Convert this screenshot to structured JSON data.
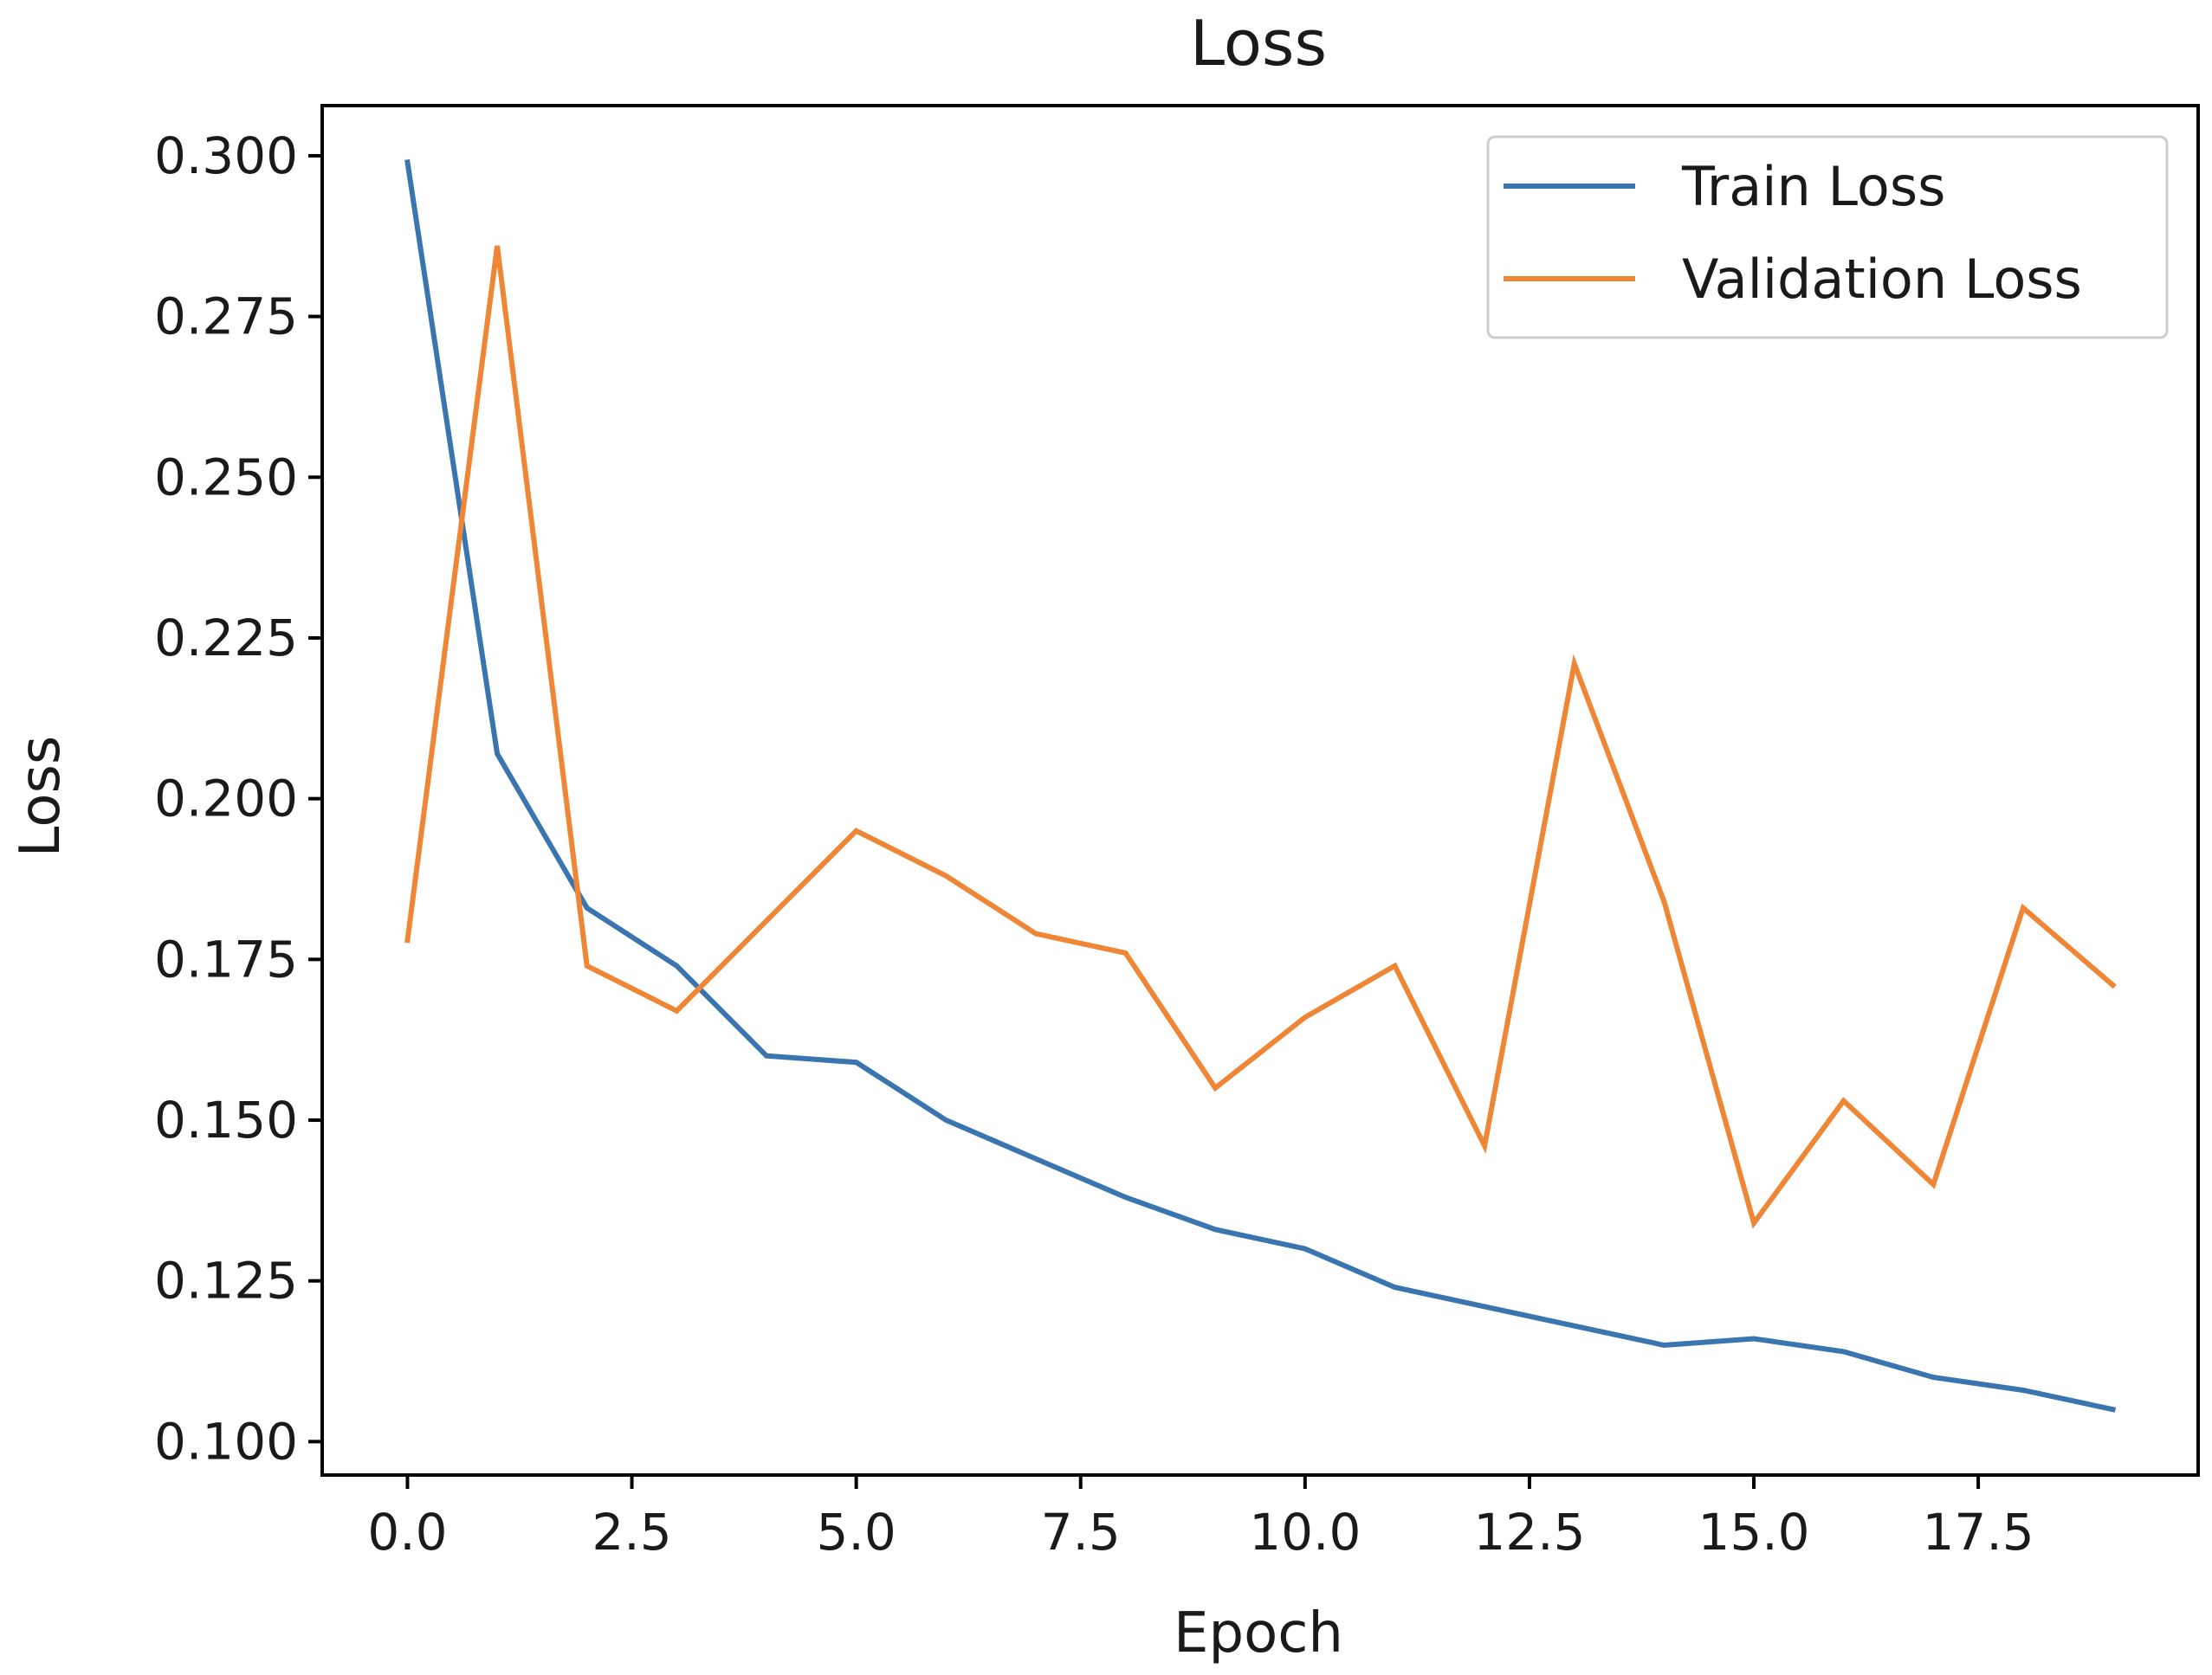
{
  "chart_data": {
    "type": "line",
    "title": "Loss",
    "xlabel": "Epoch",
    "ylabel": "Loss",
    "xlim": [
      -0.95,
      19.95
    ],
    "ylim": [
      0.0948,
      0.3078
    ],
    "xticks": [
      0.0,
      2.5,
      5.0,
      7.5,
      10.0,
      12.5,
      15.0,
      17.5
    ],
    "xtick_labels": [
      "0.0",
      "2.5",
      "5.0",
      "7.5",
      "10.0",
      "12.5",
      "15.0",
      "17.5"
    ],
    "yticks": [
      0.1,
      0.125,
      0.15,
      0.175,
      0.2,
      0.225,
      0.25,
      0.275,
      0.3
    ],
    "ytick_labels": [
      "0.100",
      "0.125",
      "0.150",
      "0.175",
      "0.200",
      "0.225",
      "0.250",
      "0.275",
      "0.300"
    ],
    "grid": false,
    "legend_position": "top-right",
    "x": [
      0,
      1,
      2,
      3,
      4,
      5,
      6,
      7,
      8,
      9,
      10,
      11,
      12,
      13,
      14,
      15,
      16,
      17,
      18,
      19
    ],
    "series": [
      {
        "name": "Train Loss",
        "color": "#3a75b0",
        "values": [
          0.299,
          0.207,
          0.183,
          0.174,
          0.16,
          0.159,
          0.15,
          0.144,
          0.138,
          0.133,
          0.13,
          0.124,
          0.121,
          0.118,
          0.115,
          0.116,
          0.114,
          0.11,
          0.108,
          0.105
        ]
      },
      {
        "name": "Validation Loss",
        "color": "#ef8636",
        "values": [
          0.178,
          0.286,
          0.174,
          0.167,
          0.181,
          0.195,
          0.188,
          0.179,
          0.176,
          0.155,
          0.166,
          0.174,
          0.146,
          0.221,
          0.184,
          0.134,
          0.153,
          0.14,
          0.183,
          0.171
        ]
      }
    ]
  }
}
